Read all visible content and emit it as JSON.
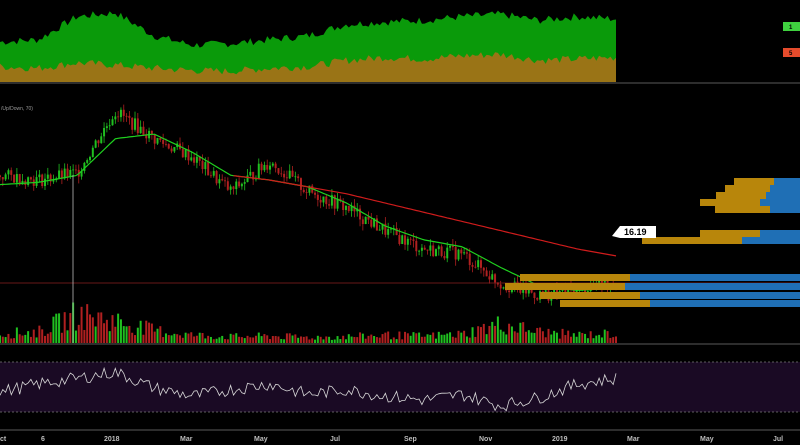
{
  "indicator_label": "/Up/Down, 70)",
  "price_tag": {
    "label": "16.19",
    "value": 16.19
  },
  "axis_labels": [
    "ct",
    "6",
    "2018",
    "Mar",
    "May",
    "Jul",
    "Sep",
    "Nov",
    "2019",
    "Mar",
    "May",
    "Jul"
  ],
  "badges": [
    {
      "label": "1",
      "color": "#3fd13f"
    },
    {
      "label": "5",
      "color": "#e54b2c"
    }
  ],
  "colors": {
    "green_area": "#0a9a0a",
    "olive_area": "#9a7416",
    "candle_up": "#20c020",
    "candle_down": "#b02020",
    "ma_short": "#1fd11f",
    "ma_long": "#d01c1c",
    "hline": "#8b2020",
    "vp_gold": "#b8860b",
    "vp_blue": "#1f6fb5",
    "rsi_bg": "#1a0a24",
    "rsi_line": "#d8d8d8"
  },
  "chart_data": {
    "type": "candlestick",
    "title": "",
    "x_range": [
      "2017-10",
      "2019-07"
    ],
    "grid": false,
    "panels": [
      {
        "name": "up/down volume area",
        "type": "area",
        "x": [
          "2017-10",
          "2017-11",
          "2017-12",
          "2018-01",
          "2018-02",
          "2018-03",
          "2018-04",
          "2018-05",
          "2018-06",
          "2018-07",
          "2018-08",
          "2018-09",
          "2018-10",
          "2018-11",
          "2018-12",
          "2019-01",
          "2019-02"
        ],
        "series": [
          {
            "values": [
              52,
              55,
              85,
              90,
              60,
              48,
              50,
              55,
              60,
              75,
              78,
              80,
              85,
              88,
              80,
              85,
              82
            ]
          },
          {
            "values": [
              20,
              18,
              25,
              22,
              18,
              15,
              14,
              18,
              20,
              28,
              32,
              30,
              34,
              36,
              28,
              30,
              32
            ]
          }
        ]
      },
      {
        "name": "price",
        "type": "line",
        "price_level": 16.19,
        "x": [
          "2017-10",
          "2017-11",
          "2017-12",
          "2018-01",
          "2018-02",
          "2018-03",
          "2018-04",
          "2018-05",
          "2018-06",
          "2018-07",
          "2018-08",
          "2018-09",
          "2018-10",
          "2018-11",
          "2018-12",
          "2019-01",
          "2019-02"
        ],
        "series": [
          {
            "values": [
              62,
              60,
              63,
              90,
              78,
              70,
              55,
              68,
              55,
              48,
              38,
              30,
              28,
              15,
              10,
              12,
              16
            ]
          },
          {
            "values": [
              58,
              59,
              62,
              78,
              80,
              72,
              62,
              60,
              57,
              50,
              40,
              34,
              31,
              22,
              14,
              12,
              13
            ]
          },
          {
            "values": [
              null,
              null,
              null,
              null,
              null,
              null,
              62,
              60,
              57,
              54,
              50,
              46,
              42,
              38,
              34,
              30,
              27
            ]
          }
        ]
      },
      {
        "name": "volume",
        "type": "bar",
        "x": [
          "2017-10",
          "2017-11",
          "2017-12",
          "2018-01",
          "2018-02",
          "2018-03",
          "2018-04",
          "2018-05",
          "2018-06",
          "2018-07",
          "2018-08",
          "2018-09",
          "2018-10",
          "2018-11",
          "2018-12",
          "2019-01",
          "2019-02"
        ],
        "values": [
          30,
          35,
          90,
          70,
          40,
          25,
          20,
          22,
          18,
          20,
          25,
          22,
          28,
          60,
          35,
          25,
          30
        ]
      },
      {
        "name": "RSI",
        "type": "line",
        "ylim": [
          0,
          100
        ],
        "x": [
          "2017-10",
          "2017-11",
          "2017-12",
          "2018-01",
          "2018-02",
          "2018-03",
          "2018-04",
          "2018-05",
          "2018-06",
          "2018-07",
          "2018-08",
          "2018-09",
          "2018-10",
          "2018-11",
          "2018-12",
          "2019-01",
          "2019-02"
        ],
        "values": [
          45,
          55,
          62,
          70,
          50,
          40,
          48,
          55,
          42,
          48,
          40,
          35,
          42,
          28,
          38,
          55,
          62
        ]
      }
    ]
  }
}
